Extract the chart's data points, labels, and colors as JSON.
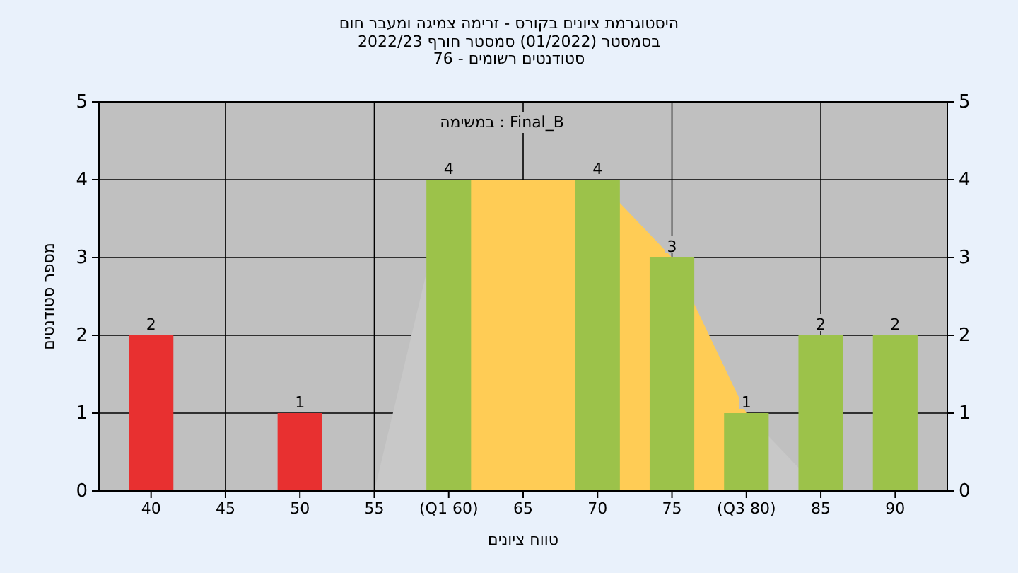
{
  "chart_data": {
    "type": "bar",
    "title": "היסטוגרמת ציונים בקורס - זרימה צמיגה ומעבר חום",
    "subtitle": "בסמסטר  (01/2022)  סמסטר חורף 2022/23\nסטודנטים רשומים - 76",
    "xlabel": "טווח ציונים",
    "ylabel": "מספר סטודנטים",
    "annotations": [
      "במשימה : Final_B"
    ],
    "categories": [
      "40",
      "45",
      "50",
      "55",
      "(Q1 60)",
      "65",
      "70",
      "75",
      "(Q3 80)",
      "85",
      "90"
    ],
    "series": [
      {
        "type": "area",
        "color": "#c8c8c8",
        "values": [
          null,
          null,
          null,
          0,
          4,
          null,
          null,
          null,
          1,
          0,
          null
        ]
      },
      {
        "type": "area",
        "color": "#ffcc55",
        "values": [
          null,
          null,
          null,
          null,
          4,
          4,
          4,
          3,
          1,
          null,
          null
        ]
      },
      {
        "colors": [
          "#e83030",
          "#e83030",
          "#e83030",
          "#9cc24a",
          "#9cc24a",
          "#9cc24a",
          "#9cc24a",
          "#9cc24a",
          "#9cc24a",
          "#9cc24a",
          "#9cc24a"
        ],
        "values": [
          2,
          0,
          1,
          0,
          4,
          0,
          4,
          3,
          1,
          2,
          2
        ],
        "value_labels": [
          "2",
          null,
          "1",
          null,
          "4",
          null,
          "4",
          "3",
          "1",
          "2",
          "2"
        ]
      }
    ],
    "ylim": [
      0,
      5
    ],
    "yticks": [
      0,
      1,
      2,
      3,
      4,
      5
    ],
    "y2lim": [
      0,
      5
    ],
    "y2ticks": [
      0,
      1,
      2,
      3,
      4,
      5
    ],
    "grid": true
  }
}
